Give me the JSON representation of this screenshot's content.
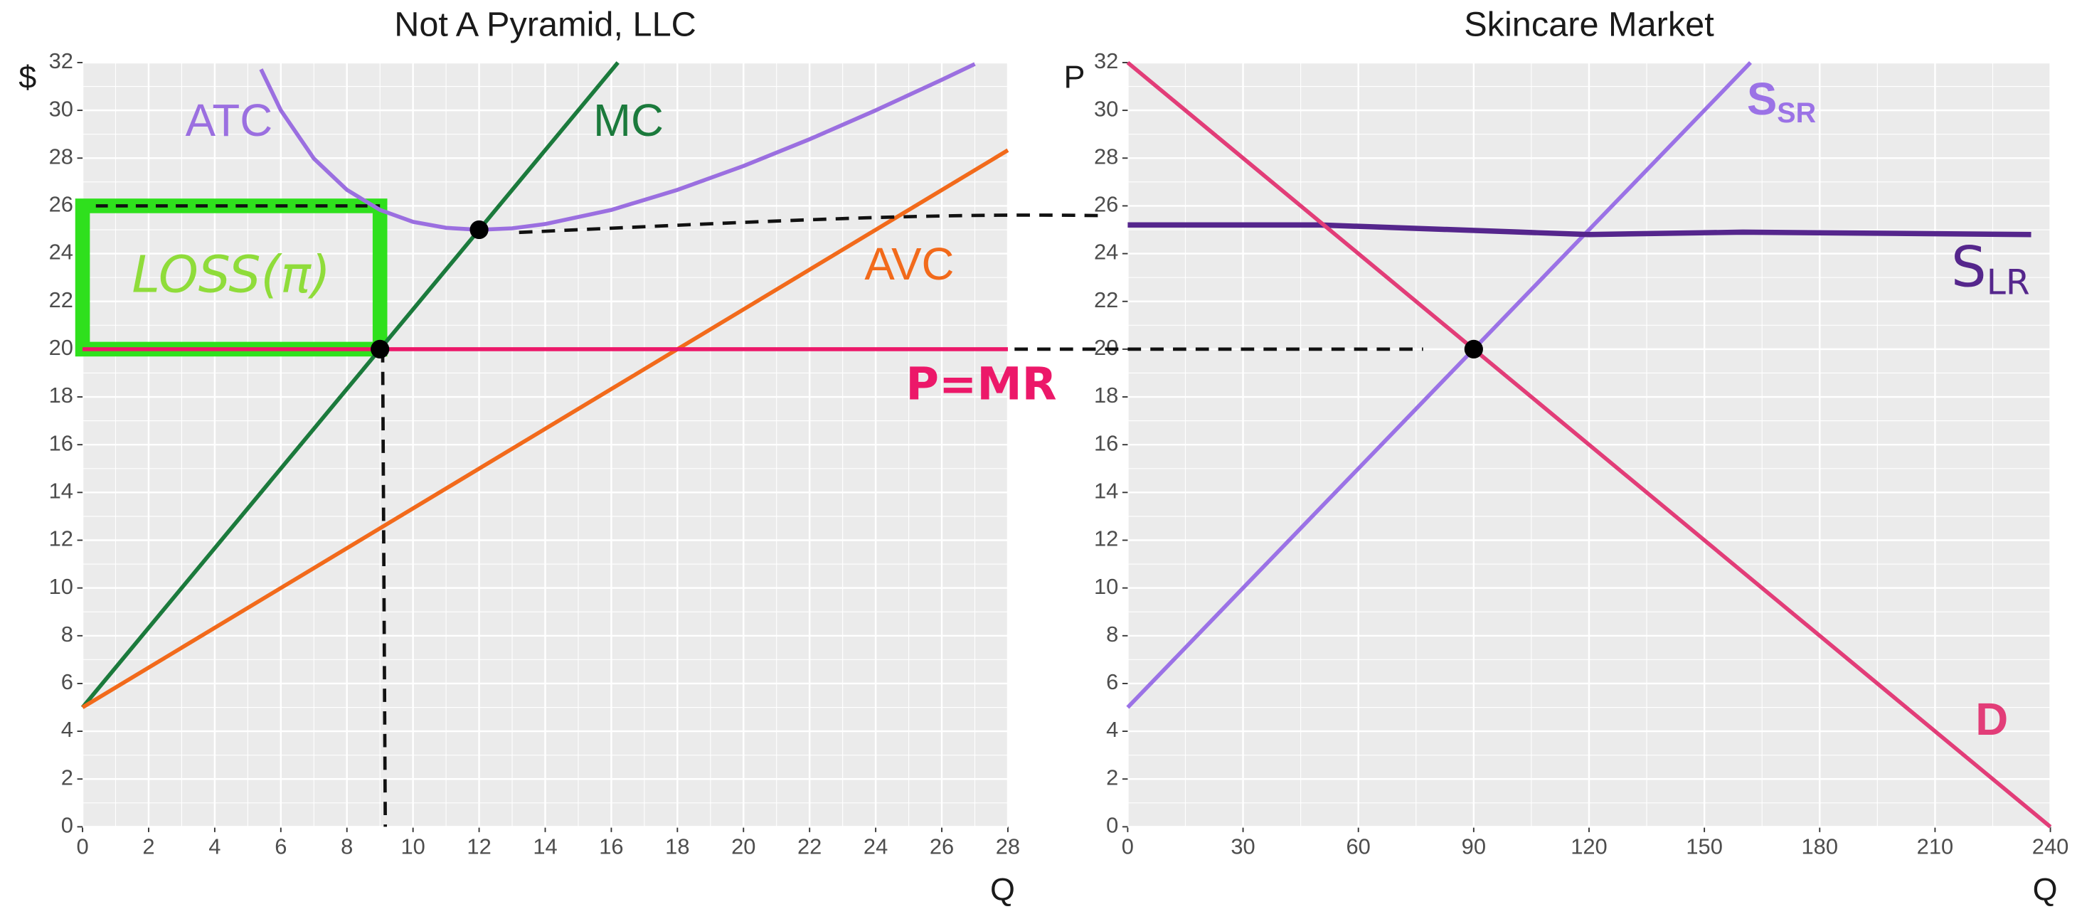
{
  "chart_data": [
    {
      "type": "line",
      "title": "Not A Pyramid, LLC",
      "x_label": "Q",
      "y_label": "$",
      "xlim": [
        0,
        28
      ],
      "ylim": [
        0,
        32
      ],
      "xticks": [
        0,
        2,
        4,
        6,
        8,
        10,
        12,
        14,
        16,
        18,
        20,
        22,
        24,
        26,
        28
      ],
      "yticks": [
        0,
        2,
        4,
        6,
        8,
        10,
        12,
        14,
        16,
        18,
        20,
        22,
        24,
        26,
        28,
        30,
        32
      ],
      "grid": true,
      "series": [
        {
          "name": "ATC",
          "color": "#9b6fe0",
          "x": [
            5.4,
            6,
            7,
            8,
            9,
            10,
            11,
            12,
            13,
            14,
            16,
            18,
            20,
            22,
            24,
            26,
            27
          ],
          "values": [
            31.72,
            30,
            27.98,
            26.67,
            25.83,
            25.33,
            25.08,
            25,
            25.06,
            25.24,
            25.83,
            26.67,
            27.67,
            28.79,
            30,
            31.28,
            31.94
          ]
        },
        {
          "name": "MC",
          "color": "#1b7a3c",
          "x": [
            0,
            16.2
          ],
          "values": [
            5,
            32
          ]
        },
        {
          "name": "AVC",
          "color": "#f26a1b",
          "x": [
            0,
            28
          ],
          "values": [
            5,
            28.33
          ]
        },
        {
          "name": "P=MR",
          "color": "#ec1869",
          "x": [
            0,
            28
          ],
          "values": [
            20,
            20
          ]
        }
      ],
      "loss_box": {
        "label": "LOSS(π)",
        "color": "#2fe01d",
        "label_color": "#8fdc3a",
        "x": [
          0,
          9
        ],
        "y": [
          20,
          26
        ]
      },
      "points": [
        {
          "x": 9,
          "y": 20
        },
        {
          "x": 12,
          "y": 25
        }
      ]
    },
    {
      "type": "line",
      "title": "Skincare Market",
      "x_label": "Q",
      "y_label": "P",
      "xlim": [
        0,
        240
      ],
      "ylim": [
        0,
        32
      ],
      "xticks": [
        0,
        30,
        60,
        90,
        120,
        150,
        180,
        210,
        240
      ],
      "yticks": [
        0,
        2,
        4,
        6,
        8,
        10,
        12,
        14,
        16,
        18,
        20,
        22,
        24,
        26,
        28,
        30,
        32
      ],
      "grid": true,
      "series": [
        {
          "name": "S",
          "subscript": "SR",
          "color": "#9b72e6",
          "x": [
            0,
            162
          ],
          "values": [
            5,
            32
          ]
        },
        {
          "name": "S",
          "subscript": "LR",
          "color": "#55268c",
          "x": [
            0,
            50,
            120,
            160,
            235
          ],
          "values": [
            25.2,
            25.2,
            24.8,
            24.9,
            24.8
          ]
        },
        {
          "name": "D",
          "color": "#e23d78",
          "x": [
            0,
            240
          ],
          "values": [
            32,
            0
          ]
        }
      ],
      "points": [
        {
          "x": 90,
          "y": 20
        }
      ]
    }
  ]
}
